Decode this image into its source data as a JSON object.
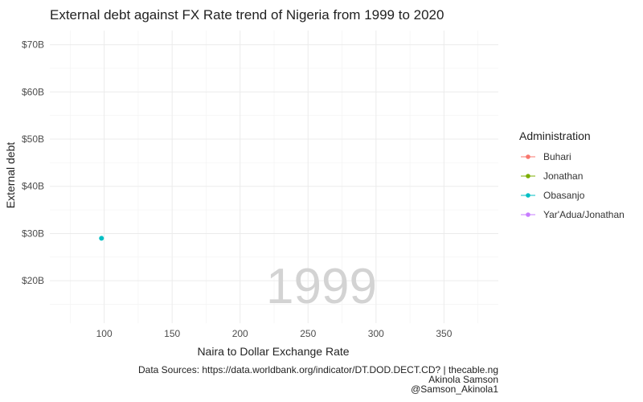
{
  "chart_data": {
    "type": "scatter",
    "title": "External debt against FX Rate trend of Nigeria from 1999 to 2020",
    "xlabel": "Naira to Dollar Exchange Rate",
    "ylabel": "External debt",
    "xlim": [
      60,
      390
    ],
    "ylim": [
      11,
      73
    ],
    "x_ticks": [
      100,
      150,
      200,
      250,
      300,
      350
    ],
    "y_ticks": [
      20,
      30,
      40,
      50,
      60,
      70
    ],
    "y_tick_prefix": "$",
    "y_tick_suffix": "B",
    "grid": true,
    "frame_label": "1999",
    "legend": {
      "title": "Administration",
      "position": "right",
      "entries": [
        {
          "name": "Buhari",
          "color": "#F8766D"
        },
        {
          "name": "Jonathan",
          "color": "#7CAE00"
        },
        {
          "name": "Obasanjo",
          "color": "#00BFC4"
        },
        {
          "name": "Yar'Adua/Jonathan",
          "color": "#C77CFF"
        }
      ]
    },
    "series": [
      {
        "name": "Obasanjo",
        "color": "#00BFC4",
        "points": [
          {
            "x": 98,
            "y": 29
          }
        ]
      }
    ],
    "caption": [
      "Data Sources: https://data.worldbank.org/indicator/DT.DOD.DECT.CD? | thecable.ng",
      "Akinola Samson",
      "@Samson_Akinola1"
    ]
  }
}
